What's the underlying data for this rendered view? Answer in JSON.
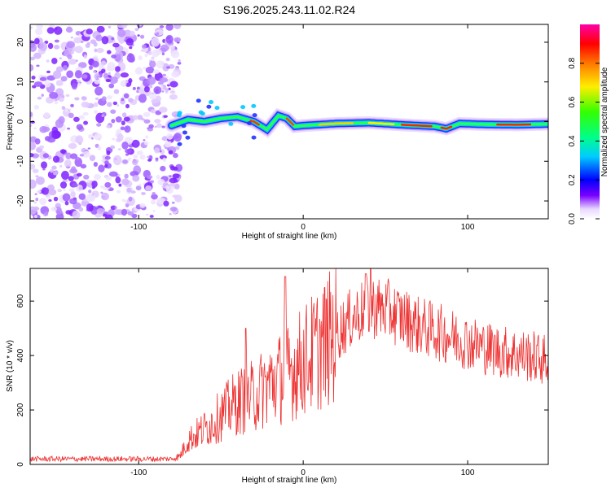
{
  "title": "S196.2025.243.11.02.R24",
  "chart_data": [
    {
      "type": "heatmap",
      "name": "spectrogram",
      "xlabel": "Height of straight line (km)",
      "ylabel": "Frequency (Hz)",
      "xlim": [
        -166,
        149
      ],
      "ylim": [
        -24.5,
        24.5
      ],
      "xticks": [
        -100,
        0,
        100
      ],
      "xtick_labels": [
        "-100",
        "0",
        "100"
      ],
      "yticks": [
        -20,
        -10,
        0,
        10,
        20
      ],
      "ytick_labels": [
        "-20",
        "-10",
        "0",
        "10",
        "20"
      ],
      "noise_region_x": [
        -166,
        -80
      ],
      "signal_onset_x": -80,
      "signal_frequency_track": [
        {
          "x": -80,
          "y": -1.0
        },
        {
          "x": -70,
          "y": 0.5
        },
        {
          "x": -60,
          "y": 0.0
        },
        {
          "x": -50,
          "y": 0.8
        },
        {
          "x": -40,
          "y": 1.2
        },
        {
          "x": -30,
          "y": 0.0
        },
        {
          "x": -22,
          "y": -2.0
        },
        {
          "x": -15,
          "y": 1.5
        },
        {
          "x": -10,
          "y": 0.8
        },
        {
          "x": -5,
          "y": -1.2
        },
        {
          "x": 0,
          "y": -1.0
        },
        {
          "x": 20,
          "y": -0.5
        },
        {
          "x": 40,
          "y": -0.3
        },
        {
          "x": 60,
          "y": -0.8
        },
        {
          "x": 80,
          "y": -1.2
        },
        {
          "x": 87,
          "y": -1.8
        },
        {
          "x": 95,
          "y": -0.5
        },
        {
          "x": 110,
          "y": -0.7
        },
        {
          "x": 130,
          "y": -0.8
        },
        {
          "x": 149,
          "y": -0.6
        }
      ],
      "colorbar": {
        "label": "Normalized spectral amplitude",
        "range": [
          0,
          1
        ],
        "ticks": [
          0.0,
          0.2,
          0.4,
          0.6,
          0.8
        ],
        "tick_labels": [
          "0.0",
          "0.2",
          "0.4",
          "0.6",
          "0.8"
        ]
      }
    },
    {
      "type": "line",
      "name": "snr",
      "xlabel": "Height of straight line (km)",
      "ylabel": "SNR (10 * v/v)",
      "xlim": [
        -166,
        149
      ],
      "ylim": [
        0,
        720
      ],
      "xticks": [
        -100,
        0,
        100
      ],
      "xtick_labels": [
        "-100",
        "0",
        "100"
      ],
      "yticks": [
        0,
        200,
        400,
        600
      ],
      "ytick_labels": [
        "0",
        "200",
        "400",
        "600"
      ],
      "line_color": "#ee3333",
      "envelope": [
        {
          "x": -166,
          "y": 20
        },
        {
          "x": -80,
          "y": 20
        },
        {
          "x": -75,
          "y": 30
        },
        {
          "x": -70,
          "y": 90
        },
        {
          "x": -60,
          "y": 130
        },
        {
          "x": -50,
          "y": 180
        },
        {
          "x": -40,
          "y": 230
        },
        {
          "x": -30,
          "y": 250
        },
        {
          "x": -20,
          "y": 300
        },
        {
          "x": -10,
          "y": 330
        },
        {
          "x": 0,
          "y": 380
        },
        {
          "x": 10,
          "y": 430
        },
        {
          "x": 20,
          "y": 480
        },
        {
          "x": 30,
          "y": 540
        },
        {
          "x": 40,
          "y": 580
        },
        {
          "x": 50,
          "y": 570
        },
        {
          "x": 60,
          "y": 540
        },
        {
          "x": 70,
          "y": 510
        },
        {
          "x": 80,
          "y": 490
        },
        {
          "x": 90,
          "y": 470
        },
        {
          "x": 100,
          "y": 450
        },
        {
          "x": 110,
          "y": 430
        },
        {
          "x": 120,
          "y": 415
        },
        {
          "x": 130,
          "y": 405
        },
        {
          "x": 140,
          "y": 395
        },
        {
          "x": 149,
          "y": 380
        }
      ],
      "peaks": [
        {
          "x": -35,
          "y": 500
        },
        {
          "x": -11,
          "y": 690
        },
        {
          "x": 38,
          "y": 700
        },
        {
          "x": 41,
          "y": 720
        }
      ]
    }
  ]
}
